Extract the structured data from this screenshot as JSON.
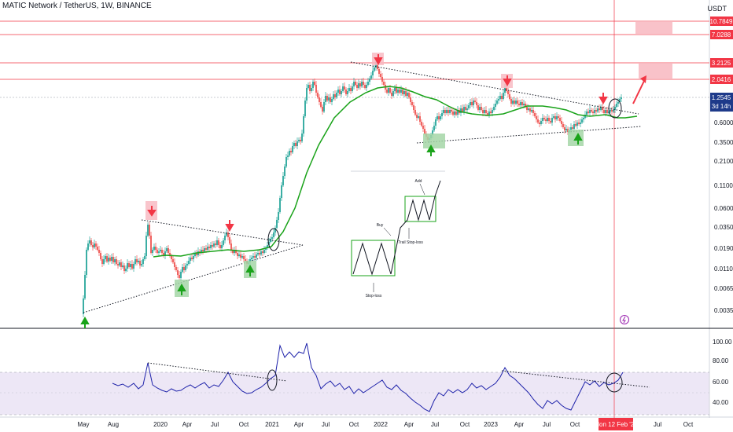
{
  "header": {
    "title": "MATIC Network / TetherUS, 1W, BINANCE",
    "unit": "USDT"
  },
  "price_axis": {
    "levels": [
      {
        "label": "10.7849",
        "color": "#f23645"
      },
      {
        "label": "7.0288",
        "color": "#f23645"
      },
      {
        "label": "3.2125",
        "color": "#f23645"
      },
      {
        "label": "2.0416",
        "color": "#f23645"
      },
      {
        "label": "1.2545",
        "color": "#1e3a8a"
      }
    ],
    "current_countdown": "3d 14h",
    "ticks": [
      "0.6000",
      "0.3500",
      "0.2100",
      "0.1100",
      "0.0600",
      "0.0350",
      "0.0190",
      "0.0110",
      "0.0065",
      "0.0035"
    ]
  },
  "rsi_axis": {
    "ticks": [
      "100.00",
      "80.00",
      "60.00",
      "40.00"
    ]
  },
  "time_axis": {
    "labels": [
      "May",
      "Aug",
      "2020",
      "Apr",
      "Jul",
      "Oct",
      "2021",
      "Apr",
      "Jul",
      "Oct",
      "2022",
      "Apr",
      "Jul",
      "Oct",
      "2023",
      "Apr",
      "Jul",
      "Oct",
      "Jul",
      "Oct"
    ],
    "crosshair_date": "Mon 12 Feb '24"
  },
  "annotations": {
    "stop_loss_label_1": "Stop-loss",
    "stop_loss_label_2": "Trail Stop-loss",
    "buy_label": "Buy",
    "add_label": "Add"
  },
  "colors": {
    "up_candle": "#26a69a",
    "down_candle": "#ef5350",
    "ma_line": "#1aa31a",
    "resistance": "#f23645",
    "rsi_line": "#1e22aa",
    "rsi_band": "#ede7f6",
    "current_price": "#1e3a8a"
  },
  "chart_data": {
    "type": "line",
    "title": "MATIC Network / TetherUS, 1W, BINANCE",
    "yscale": "log",
    "resistance_levels": [
      10.7849,
      7.0288,
      3.2125,
      2.0416
    ],
    "current_price": 1.2545,
    "x": [
      "May 2019",
      "Aug 2019",
      "2020",
      "Apr 2020",
      "Jul 2020",
      "Oct 2020",
      "2021",
      "Apr 2021",
      "Jul 2021",
      "Oct 2021",
      "2022",
      "Apr 2022",
      "Jul 2022",
      "Oct 2022",
      "2023",
      "Apr 2023",
      "Jul 2023",
      "Oct 2023",
      "Feb 2024"
    ],
    "series": [
      {
        "values": [
          0.0035,
          0.019,
          0.016,
          0.013,
          0.016,
          0.02,
          0.03,
          0.4,
          1.3,
          1.5,
          2.5,
          1.3,
          0.42,
          0.85,
          1.1,
          1.1,
          0.7,
          0.55,
          1.2545
        ]
      }
    ],
    "rsi": {
      "ylim": [
        35,
        100
      ],
      "values": [
        55,
        60,
        78,
        55,
        60,
        62,
        70,
        100,
        95,
        80,
        70,
        50,
        38,
        60,
        68,
        70,
        52,
        40,
        72
      ]
    }
  }
}
